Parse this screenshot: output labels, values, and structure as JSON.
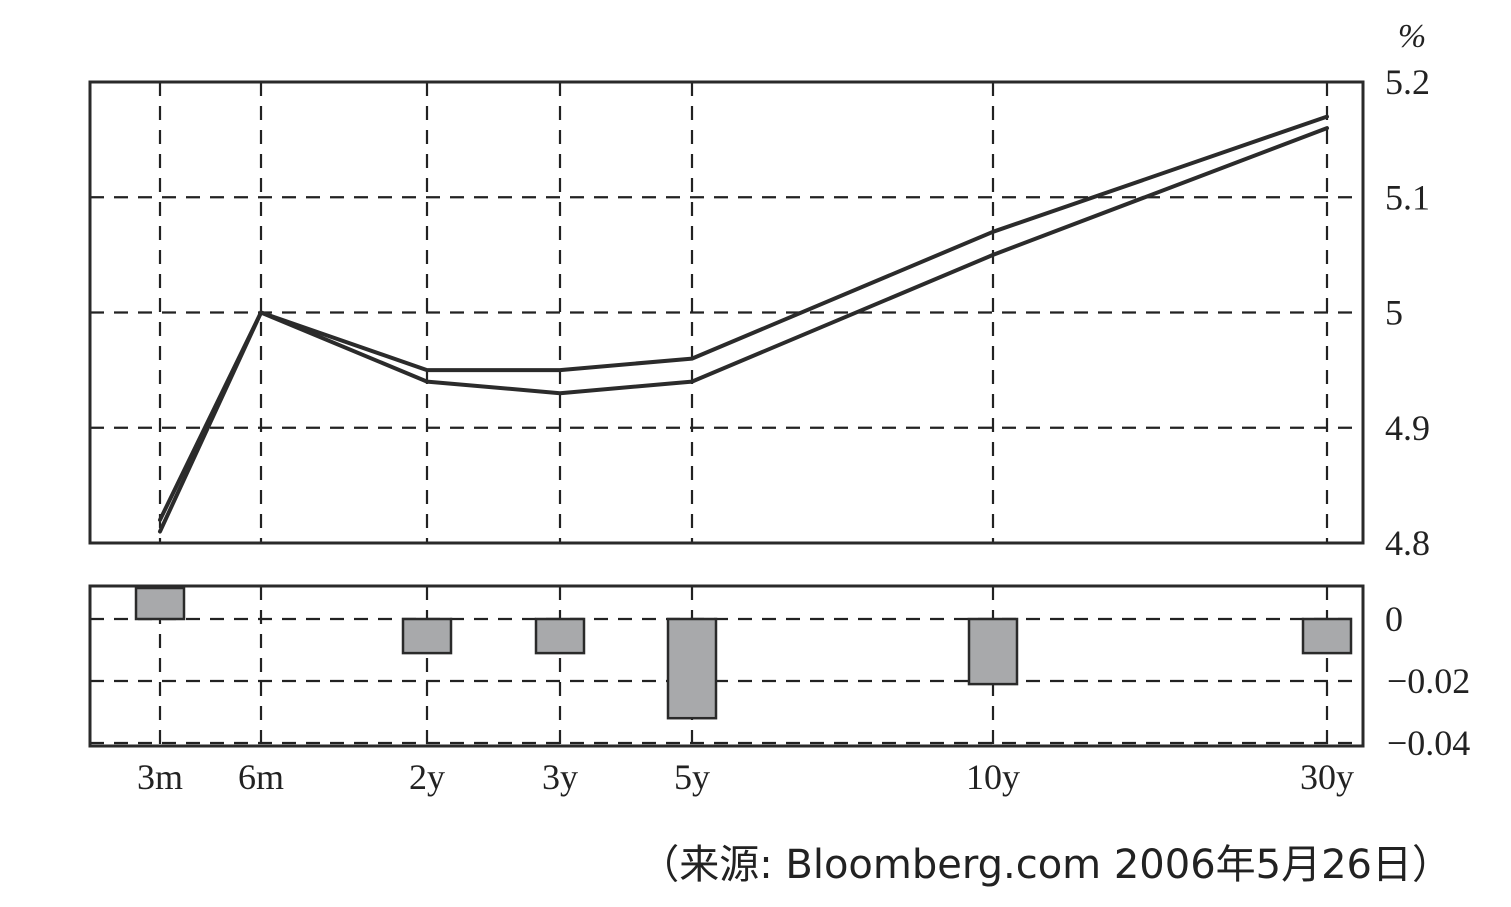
{
  "unit": "%",
  "source": "（来源: Bloomberg.com 2006年5月26日）",
  "chart_data": [
    {
      "type": "line",
      "categories": [
        "3m",
        "6m",
        "2y",
        "3y",
        "5y",
        "10y",
        "30y"
      ],
      "series": [
        {
          "values": [
            4.82,
            5.0,
            4.95,
            4.95,
            4.96,
            5.07,
            5.17
          ]
        },
        {
          "values": [
            4.81,
            5.0,
            4.94,
            4.93,
            4.94,
            5.05,
            5.16
          ]
        }
      ],
      "ylabel": "%",
      "ylim": [
        4.8,
        5.2
      ],
      "yticks": [
        "4.8",
        "4.9",
        "5",
        "5.1",
        "5.2"
      ],
      "y_axis_side": "right",
      "grid": true
    },
    {
      "type": "bar",
      "categories": [
        "3m",
        "6m",
        "2y",
        "3y",
        "5y",
        "10y",
        "30y"
      ],
      "values": [
        0.01,
        0.0,
        -0.011,
        -0.011,
        -0.032,
        -0.021,
        -0.011
      ],
      "ylim": [
        -0.041,
        0.011
      ],
      "yticks": [
        "0",
        "−0.02",
        "−0.04"
      ],
      "y_axis_side": "right",
      "grid": true
    }
  ]
}
